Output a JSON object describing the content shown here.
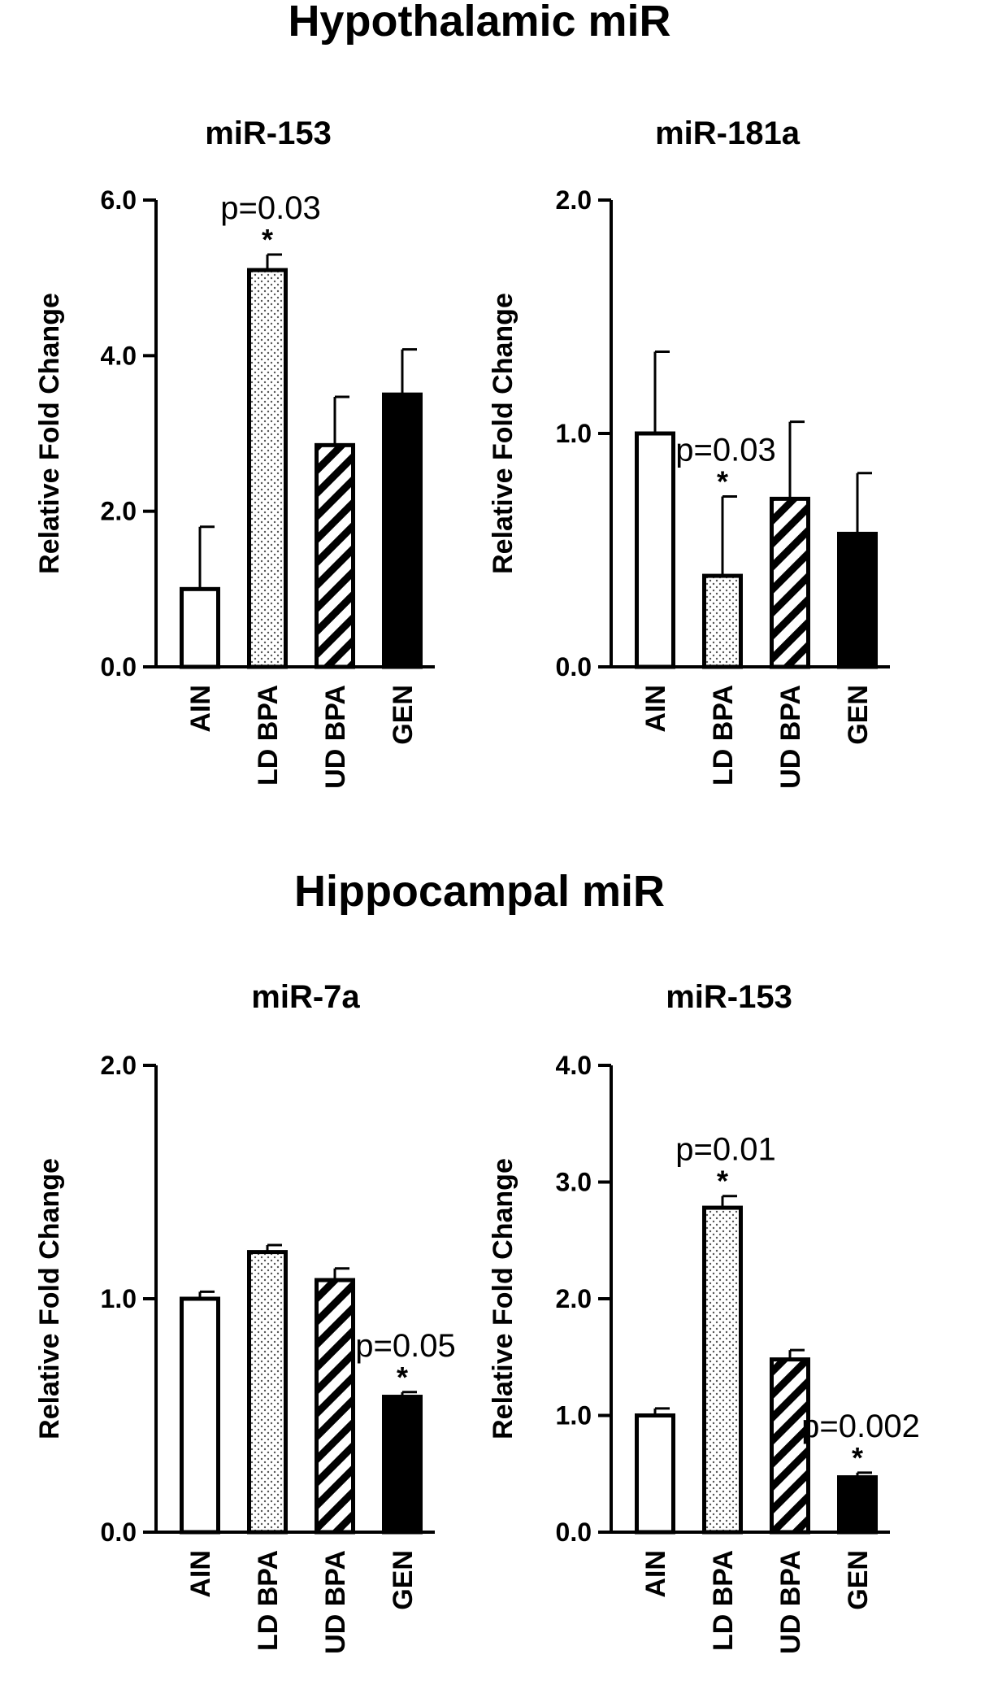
{
  "sections": [
    "Hypothalamic miR",
    "Hippocampal miR"
  ],
  "chart_data": [
    {
      "type": "bar",
      "section": "Hypothalamic miR",
      "title": "miR-153",
      "ylabel": "Relative Fold Change",
      "ylim": [
        0,
        6
      ],
      "yticks": [
        "0.0",
        "2.0",
        "4.0",
        "6.0"
      ],
      "categories": [
        "AIN",
        "LD BPA",
        "UD BPA",
        "GEN"
      ],
      "values": [
        1.0,
        5.1,
        2.85,
        3.5
      ],
      "errors": [
        0.8,
        0.2,
        0.62,
        0.58
      ],
      "annotations": [
        {
          "category": "LD BPA",
          "p": "p=0.03",
          "star": "*"
        }
      ]
    },
    {
      "type": "bar",
      "section": "Hypothalamic miR",
      "title": "miR-181a",
      "ylabel": "Relative Fold Change",
      "ylim": [
        0,
        2
      ],
      "yticks": [
        "0.0",
        "1.0",
        "2.0"
      ],
      "categories": [
        "AIN",
        "LD BPA",
        "UD BPA",
        "GEN"
      ],
      "values": [
        1.0,
        0.39,
        0.72,
        0.57
      ],
      "errors": [
        0.35,
        0.34,
        0.33,
        0.26
      ],
      "annotations": [
        {
          "category": "LD BPA",
          "p": "p=0.03",
          "star": "*"
        }
      ]
    },
    {
      "type": "bar",
      "section": "Hippocampal miR",
      "title": "miR-7a",
      "ylabel": "Relative Fold Change",
      "ylim": [
        0,
        2
      ],
      "yticks": [
        "0.0",
        "1.0",
        "2.0"
      ],
      "categories": [
        "AIN",
        "LD BPA",
        "UD BPA",
        "GEN"
      ],
      "values": [
        1.0,
        1.2,
        1.08,
        0.58
      ],
      "errors": [
        0.03,
        0.03,
        0.05,
        0.02
      ],
      "annotations": [
        {
          "category": "GEN",
          "p": "p=0.05",
          "star": "*"
        }
      ]
    },
    {
      "type": "bar",
      "section": "Hippocampal miR",
      "title": "miR-153",
      "ylabel": "Relative Fold Change",
      "ylim": [
        0,
        4
      ],
      "yticks": [
        "0.0",
        "1.0",
        "2.0",
        "3.0",
        "4.0"
      ],
      "categories": [
        "AIN",
        "LD BPA",
        "UD BPA",
        "GEN"
      ],
      "values": [
        1.0,
        2.78,
        1.48,
        0.47
      ],
      "errors": [
        0.06,
        0.1,
        0.08,
        0.04
      ],
      "annotations": [
        {
          "category": "LD BPA",
          "p": "p=0.01",
          "star": "*"
        },
        {
          "category": "GEN",
          "p": "p=0.002",
          "star": "*"
        }
      ]
    }
  ]
}
